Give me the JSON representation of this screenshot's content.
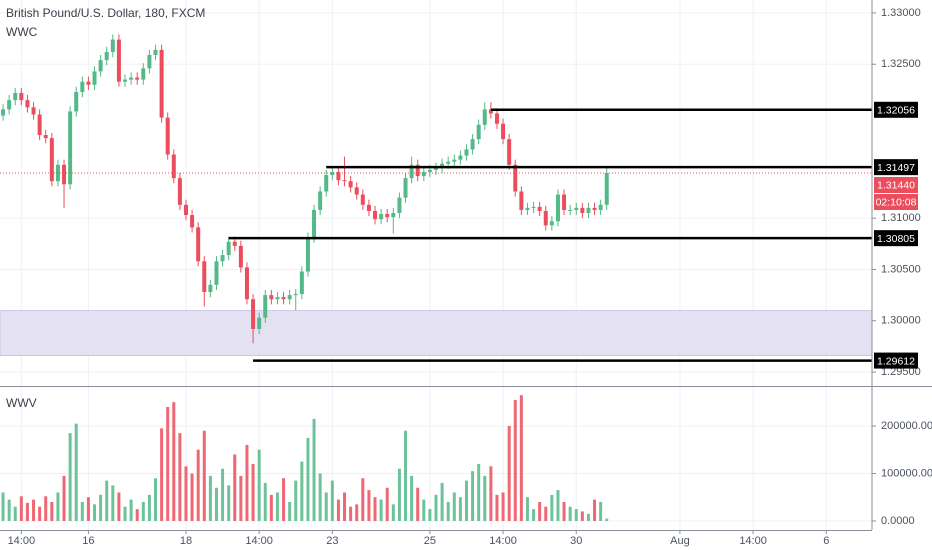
{
  "chart_data": [
    {
      "type": "candlestick",
      "title": "British Pound/U.S. Dollar, 180, FXCM",
      "indicator": "WWC",
      "up_color": "#53b987",
      "down_color": "#eb4d5c",
      "grid": true,
      "open": [
        1.32,
        1.3206,
        1.3215,
        1.3222,
        1.3215,
        1.3208,
        1.3201,
        1.3181,
        1.3178,
        1.3136,
        1.3152,
        1.3133,
        1.3204,
        1.3223,
        1.3233,
        1.323,
        1.3243,
        1.3254,
        1.3262,
        1.3274,
        1.3233,
        1.3235,
        1.3237,
        1.3235,
        1.3246,
        1.3259,
        1.3264,
        1.3198,
        1.3162,
        1.3139,
        1.3113,
        1.3103,
        1.3091,
        1.3058,
        1.3028,
        1.3035,
        1.3058,
        1.3064,
        1.3077,
        1.3073,
        1.3052,
        1.3021,
        1.2992,
        1.3003,
        1.3025,
        1.3021,
        1.3023,
        1.3021,
        1.3025,
        1.3026,
        1.3048,
        1.3081,
        1.3108,
        1.3126,
        1.3142,
        1.3145,
        1.3137,
        1.3136,
        1.313,
        1.3123,
        1.3113,
        1.3107,
        1.3099,
        1.3104,
        1.3101,
        1.3105,
        1.312,
        1.3139,
        1.3152,
        1.3141,
        1.3145,
        1.3147,
        1.3149,
        1.3153,
        1.3155,
        1.3157,
        1.3161,
        1.3167,
        1.3177,
        1.3191,
        1.3206,
        1.3202,
        1.3192,
        1.3177,
        1.3152,
        1.3126,
        1.3108,
        1.311,
        1.3111,
        1.3107,
        1.3093,
        1.3097,
        1.3123,
        1.3108,
        1.3108,
        1.311,
        1.3105,
        1.311,
        1.3108,
        1.3113
      ],
      "high": [
        1.3211,
        1.322,
        1.3227,
        1.3227,
        1.322,
        1.3213,
        1.3206,
        1.3186,
        1.3183,
        1.3157,
        1.3157,
        1.3209,
        1.3228,
        1.3238,
        1.3238,
        1.3248,
        1.3259,
        1.3267,
        1.3279,
        1.3279,
        1.324,
        1.3242,
        1.3242,
        1.3251,
        1.3264,
        1.3269,
        1.3269,
        1.3203,
        1.3167,
        1.3144,
        1.3118,
        1.3108,
        1.3096,
        1.3063,
        1.304,
        1.3063,
        1.3069,
        1.3082,
        1.3082,
        1.3078,
        1.3057,
        1.3026,
        1.3008,
        1.303,
        1.303,
        1.3028,
        1.3028,
        1.303,
        1.3031,
        1.3053,
        1.3086,
        1.3113,
        1.3131,
        1.3147,
        1.315,
        1.315,
        1.316,
        1.3141,
        1.3135,
        1.3128,
        1.3118,
        1.3112,
        1.3109,
        1.3109,
        1.311,
        1.3125,
        1.3144,
        1.316,
        1.3157,
        1.315,
        1.3152,
        1.3154,
        1.3158,
        1.316,
        1.3162,
        1.3166,
        1.3172,
        1.3182,
        1.3196,
        1.3213,
        1.3213,
        1.3207,
        1.3197,
        1.3182,
        1.3157,
        1.3131,
        1.3115,
        1.3116,
        1.3116,
        1.3112,
        1.3102,
        1.3128,
        1.3128,
        1.3113,
        1.3115,
        1.3115,
        1.3115,
        1.3115,
        1.3118,
        1.315
      ],
      "low": [
        1.3195,
        1.3201,
        1.321,
        1.321,
        1.3203,
        1.3196,
        1.3176,
        1.3173,
        1.3131,
        1.3131,
        1.311,
        1.3128,
        1.3199,
        1.3218,
        1.3225,
        1.3225,
        1.3238,
        1.3249,
        1.3257,
        1.3228,
        1.3228,
        1.323,
        1.323,
        1.323,
        1.3241,
        1.3254,
        1.3193,
        1.3157,
        1.3134,
        1.3108,
        1.3098,
        1.3086,
        1.3053,
        1.3014,
        1.3023,
        1.303,
        1.3053,
        1.3059,
        1.3068,
        1.3047,
        1.3016,
        1.2978,
        1.2987,
        1.2998,
        1.3016,
        1.3016,
        1.3016,
        1.3016,
        1.301,
        1.3021,
        1.3043,
        1.3076,
        1.3103,
        1.3121,
        1.3137,
        1.3132,
        1.3131,
        1.3125,
        1.3118,
        1.3108,
        1.3102,
        1.3094,
        1.3094,
        1.3096,
        1.3085,
        1.31,
        1.3115,
        1.3134,
        1.3136,
        1.3136,
        1.314,
        1.3142,
        1.3144,
        1.3148,
        1.315,
        1.3152,
        1.3156,
        1.3162,
        1.3172,
        1.3186,
        1.3197,
        1.3187,
        1.3172,
        1.3147,
        1.3121,
        1.3103,
        1.3103,
        1.3105,
        1.3102,
        1.3088,
        1.3088,
        1.3092,
        1.3103,
        1.3103,
        1.3103,
        1.31,
        1.31,
        1.3103,
        1.3103,
        1.3108
      ],
      "close": [
        1.3206,
        1.3215,
        1.3222,
        1.3215,
        1.3208,
        1.3201,
        1.3181,
        1.3178,
        1.3136,
        1.3152,
        1.3133,
        1.3204,
        1.3223,
        1.3233,
        1.323,
        1.3243,
        1.3254,
        1.3262,
        1.3274,
        1.3233,
        1.3235,
        1.3237,
        1.3235,
        1.3246,
        1.3259,
        1.3264,
        1.3198,
        1.3162,
        1.3139,
        1.3113,
        1.3103,
        1.3091,
        1.3058,
        1.3028,
        1.3035,
        1.3058,
        1.3064,
        1.3077,
        1.3073,
        1.3052,
        1.3021,
        1.2992,
        1.3003,
        1.3025,
        1.3021,
        1.3023,
        1.3021,
        1.3025,
        1.3026,
        1.3048,
        1.3081,
        1.3108,
        1.3126,
        1.3142,
        1.3145,
        1.3137,
        1.3136,
        1.313,
        1.3123,
        1.3113,
        1.3107,
        1.3099,
        1.3104,
        1.3101,
        1.3105,
        1.312,
        1.3139,
        1.3152,
        1.3141,
        1.3145,
        1.3147,
        1.3149,
        1.3153,
        1.3155,
        1.3157,
        1.3161,
        1.3167,
        1.3177,
        1.3191,
        1.3206,
        1.3202,
        1.3192,
        1.3177,
        1.3152,
        1.3126,
        1.3108,
        1.311,
        1.3111,
        1.3107,
        1.3093,
        1.3097,
        1.3123,
        1.3108,
        1.3108,
        1.311,
        1.3105,
        1.311,
        1.3108,
        1.3113,
        1.3144
      ],
      "xlim": [
        -0.5,
        142.5
      ],
      "xticks": [
        {
          "value": 3,
          "label": "14:00"
        },
        {
          "value": 14,
          "label": "16"
        },
        {
          "value": 30,
          "label": "18"
        },
        {
          "value": 42,
          "label": "14:00"
        },
        {
          "value": 54,
          "label": "23"
        },
        {
          "value": 70,
          "label": "25"
        },
        {
          "value": 82,
          "label": "14:00"
        },
        {
          "value": 94,
          "label": "30"
        },
        {
          "value": 111,
          "label": "Aug"
        },
        {
          "value": 123,
          "label": "14:00"
        },
        {
          "value": 135,
          "label": "6"
        }
      ],
      "ylim": [
        1.29374,
        1.33126
      ],
      "yticks": [
        {
          "value": 1.33,
          "label": "1.33000"
        },
        {
          "value": 1.325,
          "label": "1.32500"
        },
        {
          "value": 1.31,
          "label": "1.31000"
        },
        {
          "value": 1.305,
          "label": "1.30500"
        },
        {
          "value": 1.3,
          "label": "1.30000"
        },
        {
          "value": 1.295,
          "label": "1.29500"
        }
      ],
      "levels": [
        {
          "value": 1.32056,
          "start": 80
        },
        {
          "value": 1.31497,
          "start": 53
        },
        {
          "value": 1.30805,
          "start": 37
        },
        {
          "value": 1.29612,
          "start": 41
        }
      ],
      "zone": [
        1.2966,
        1.301
      ],
      "zone_color": "#e4e1f3",
      "last_price": {
        "value": 1.3144,
        "label": "1.31440"
      },
      "countdown": "02:10:08"
    },
    {
      "type": "volume",
      "title": "WWV",
      "values": [
        60000,
        45000,
        30000,
        52000,
        38000,
        45000,
        30000,
        52000,
        40000,
        60000,
        95000,
        185000,
        205000,
        40000,
        50000,
        35000,
        55000,
        85000,
        75000,
        60000,
        30000,
        45000,
        25000,
        40000,
        55000,
        90000,
        195000,
        240000,
        250000,
        185000,
        115000,
        100000,
        150000,
        190000,
        95000,
        70000,
        110000,
        75000,
        140000,
        95000,
        160000,
        120000,
        150000,
        80000,
        55000,
        60000,
        90000,
        40000,
        85000,
        125000,
        175000,
        215000,
        100000,
        60000,
        85000,
        45000,
        60000,
        30000,
        35000,
        90000,
        65000,
        50000,
        45000,
        70000,
        35000,
        110000,
        190000,
        95000,
        70000,
        45000,
        25000,
        55000,
        80000,
        40000,
        60000,
        50000,
        85000,
        105000,
        120000,
        95000,
        115000,
        55000,
        60000,
        200000,
        255000,
        265000,
        50000,
        25000,
        40000,
        30000,
        55000,
        65000,
        40000,
        30000,
        25000,
        20000,
        15000,
        45000,
        40000,
        5000
      ],
      "ylim": [
        -19000,
        280000
      ],
      "yticks": [
        {
          "value": 200000,
          "label": "200000.0000"
        },
        {
          "value": 100000,
          "label": "100000.0000"
        },
        {
          "value": 0,
          "label": "0.0000"
        }
      ]
    }
  ]
}
